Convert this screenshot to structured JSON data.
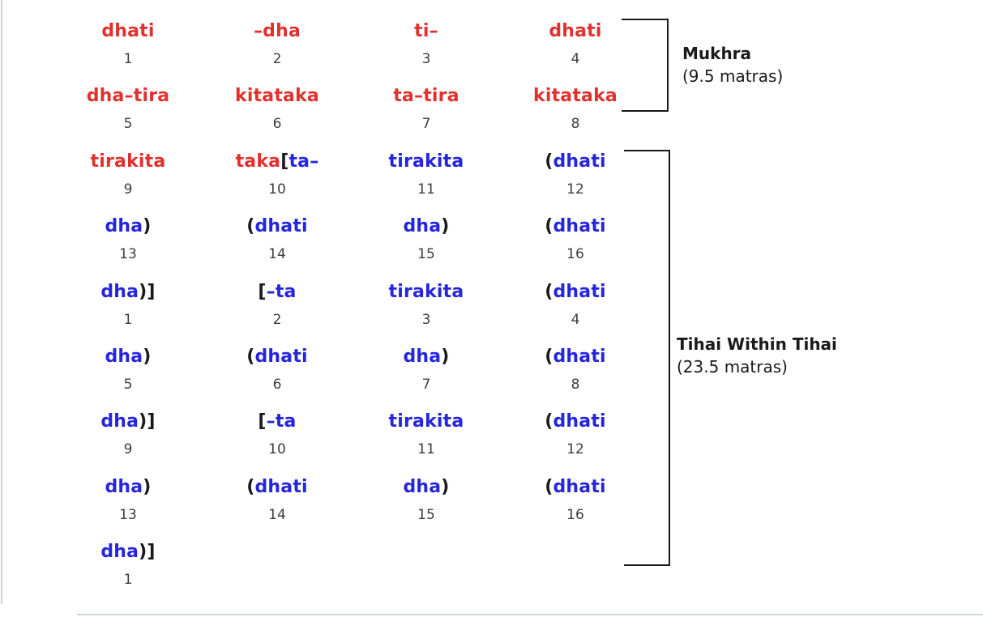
{
  "colors": {
    "red": "#e0312f",
    "blue": "#2525dd",
    "black": "#1a1a1a",
    "number": "#3d3d3d",
    "border": "#ced1d5"
  },
  "sections": [
    {
      "title": "Mukhra",
      "subtitle": "(9.5 matras)"
    },
    {
      "title": "Tihai Within Tihai",
      "subtitle": "(23.5 matras)"
    }
  ],
  "grid": {
    "rows": [
      {
        "cells": [
          {
            "parts": [
              {
                "t": "dhati",
                "c": "red"
              }
            ],
            "beat": "1"
          },
          {
            "parts": [
              {
                "t": "–dha",
                "c": "red"
              }
            ],
            "beat": "2"
          },
          {
            "parts": [
              {
                "t": "ti–",
                "c": "red"
              }
            ],
            "beat": "3"
          },
          {
            "parts": [
              {
                "t": "dhati",
                "c": "red"
              }
            ],
            "beat": "4"
          }
        ]
      },
      {
        "cells": [
          {
            "parts": [
              {
                "t": "dha–tira",
                "c": "red"
              }
            ],
            "beat": "5"
          },
          {
            "parts": [
              {
                "t": "kitataka",
                "c": "red"
              }
            ],
            "beat": "6"
          },
          {
            "parts": [
              {
                "t": "ta–tira",
                "c": "red"
              }
            ],
            "beat": "7"
          },
          {
            "parts": [
              {
                "t": "kitataka",
                "c": "red"
              }
            ],
            "beat": "8"
          }
        ]
      },
      {
        "cells": [
          {
            "parts": [
              {
                "t": "tirakita",
                "c": "red"
              }
            ],
            "beat": "9"
          },
          {
            "parts": [
              {
                "t": "taka",
                "c": "red"
              },
              {
                "t": "[",
                "c": "black"
              },
              {
                "t": "ta–",
                "c": "blue"
              }
            ],
            "beat": "10"
          },
          {
            "parts": [
              {
                "t": "tirakita",
                "c": "blue"
              }
            ],
            "beat": "11"
          },
          {
            "parts": [
              {
                "t": "(",
                "c": "black"
              },
              {
                "t": "dhati",
                "c": "blue"
              }
            ],
            "beat": "12"
          }
        ]
      },
      {
        "cells": [
          {
            "parts": [
              {
                "t": "dha",
                "c": "blue"
              },
              {
                "t": ")",
                "c": "black"
              }
            ],
            "beat": "13"
          },
          {
            "parts": [
              {
                "t": "(",
                "c": "black"
              },
              {
                "t": "dhati",
                "c": "blue"
              }
            ],
            "beat": "14"
          },
          {
            "parts": [
              {
                "t": "dha",
                "c": "blue"
              },
              {
                "t": ")",
                "c": "black"
              }
            ],
            "beat": "15"
          },
          {
            "parts": [
              {
                "t": "(",
                "c": "black"
              },
              {
                "t": "dhati",
                "c": "blue"
              }
            ],
            "beat": "16"
          }
        ]
      },
      {
        "cells": [
          {
            "parts": [
              {
                "t": "dha",
                "c": "blue"
              },
              {
                "t": ")]",
                "c": "black"
              }
            ],
            "beat": "1"
          },
          {
            "parts": [
              {
                "t": "[",
                "c": "black"
              },
              {
                "t": "–ta",
                "c": "blue"
              }
            ],
            "beat": "2"
          },
          {
            "parts": [
              {
                "t": "tirakita",
                "c": "blue"
              }
            ],
            "beat": "3"
          },
          {
            "parts": [
              {
                "t": "(",
                "c": "black"
              },
              {
                "t": "dhati",
                "c": "blue"
              }
            ],
            "beat": "4"
          }
        ]
      },
      {
        "cells": [
          {
            "parts": [
              {
                "t": "dha",
                "c": "blue"
              },
              {
                "t": ")",
                "c": "black"
              }
            ],
            "beat": "5"
          },
          {
            "parts": [
              {
                "t": "(",
                "c": "black"
              },
              {
                "t": "dhati",
                "c": "blue"
              }
            ],
            "beat": "6"
          },
          {
            "parts": [
              {
                "t": "dha",
                "c": "blue"
              },
              {
                "t": ")",
                "c": "black"
              }
            ],
            "beat": "7"
          },
          {
            "parts": [
              {
                "t": "(",
                "c": "black"
              },
              {
                "t": "dhati",
                "c": "blue"
              }
            ],
            "beat": "8"
          }
        ]
      },
      {
        "cells": [
          {
            "parts": [
              {
                "t": "dha",
                "c": "blue"
              },
              {
                "t": ")]",
                "c": "black"
              }
            ],
            "beat": "9"
          },
          {
            "parts": [
              {
                "t": "[",
                "c": "black"
              },
              {
                "t": "–ta",
                "c": "blue"
              }
            ],
            "beat": "10"
          },
          {
            "parts": [
              {
                "t": "tirakita",
                "c": "blue"
              }
            ],
            "beat": "11"
          },
          {
            "parts": [
              {
                "t": "(",
                "c": "black"
              },
              {
                "t": "dhati",
                "c": "blue"
              }
            ],
            "beat": "12"
          }
        ]
      },
      {
        "cells": [
          {
            "parts": [
              {
                "t": "dha",
                "c": "blue"
              },
              {
                "t": ")",
                "c": "black"
              }
            ],
            "beat": "13"
          },
          {
            "parts": [
              {
                "t": "(",
                "c": "black"
              },
              {
                "t": "dhati",
                "c": "blue"
              }
            ],
            "beat": "14"
          },
          {
            "parts": [
              {
                "t": "dha",
                "c": "blue"
              },
              {
                "t": ")",
                "c": "black"
              }
            ],
            "beat": "15"
          },
          {
            "parts": [
              {
                "t": "(",
                "c": "black"
              },
              {
                "t": "dhati",
                "c": "blue"
              }
            ],
            "beat": "16"
          }
        ]
      },
      {
        "cells": [
          {
            "parts": [
              {
                "t": "dha",
                "c": "blue"
              },
              {
                "t": ")]",
                "c": "black"
              }
            ],
            "beat": "1"
          }
        ]
      }
    ]
  }
}
